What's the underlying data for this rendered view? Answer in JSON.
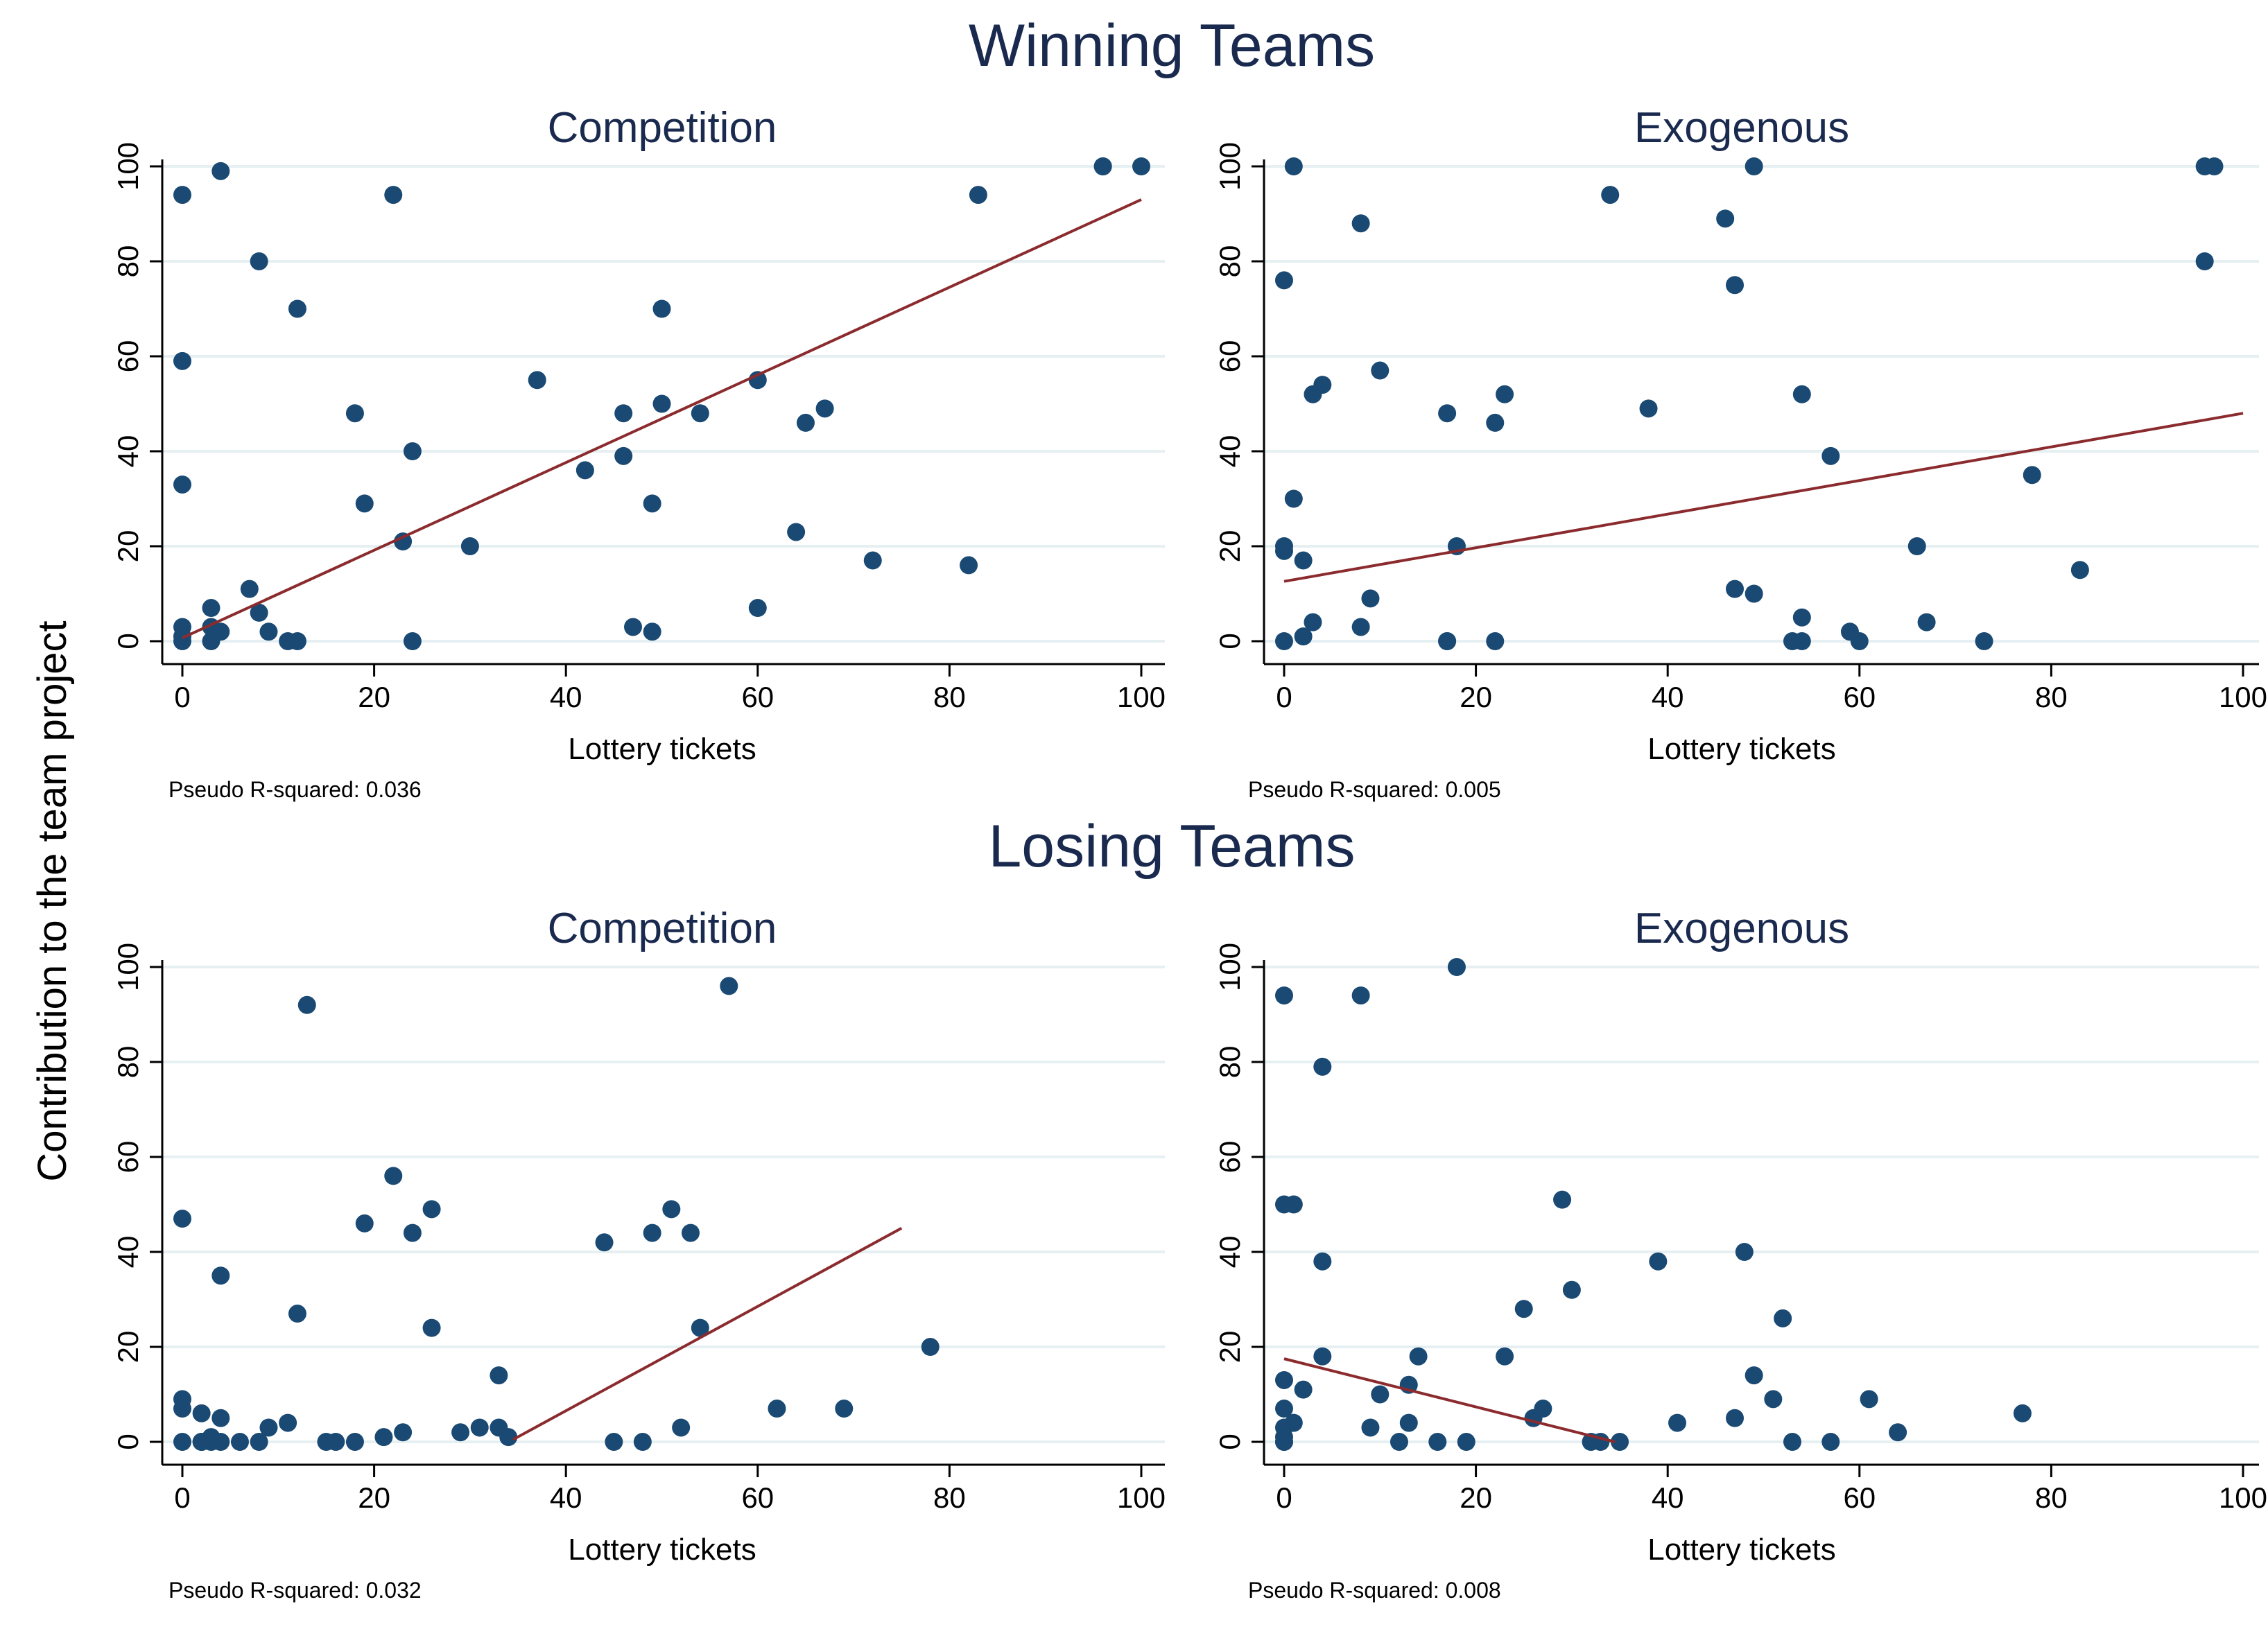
{
  "figure": {
    "ylabel": "Contribution to the team project"
  },
  "groups": [
    {
      "title": "Winning Teams"
    },
    {
      "title": "Losing Teams"
    }
  ],
  "colors": {
    "points": "#1a4a73",
    "fit_line": "#8b2b2e",
    "grid": "#e6eff1",
    "title": "#1a2a4f"
  },
  "chart_data": [
    {
      "type": "scatter",
      "group": "Winning Teams",
      "title": "Competition",
      "xlabel": "Lottery tickets",
      "xlim": [
        0,
        100
      ],
      "ylim": [
        0,
        100
      ],
      "xticks": [
        "0",
        "20",
        "40",
        "60",
        "80",
        "100"
      ],
      "yticks": [
        "0",
        "20",
        "40",
        "60",
        "80",
        "100"
      ],
      "grid": true,
      "note": "Pseudo R-squared: 0.036",
      "points": [
        [
          0,
          94
        ],
        [
          0,
          59
        ],
        [
          0,
          33
        ],
        [
          0,
          3
        ],
        [
          0,
          1
        ],
        [
          0,
          0
        ],
        [
          3,
          7
        ],
        [
          3,
          3
        ],
        [
          3,
          0
        ],
        [
          4,
          2
        ],
        [
          4,
          99
        ],
        [
          7,
          11
        ],
        [
          8,
          6
        ],
        [
          9,
          2
        ],
        [
          8,
          80
        ],
        [
          11,
          0
        ],
        [
          12,
          0
        ],
        [
          12,
          70
        ],
        [
          18,
          48
        ],
        [
          19,
          29
        ],
        [
          22,
          94
        ],
        [
          23,
          21
        ],
        [
          24,
          40
        ],
        [
          24,
          0
        ],
        [
          30,
          20
        ],
        [
          37,
          55
        ],
        [
          42,
          36
        ],
        [
          46,
          39
        ],
        [
          46,
          48
        ],
        [
          47,
          3
        ],
        [
          49,
          2
        ],
        [
          49,
          29
        ],
        [
          50,
          50
        ],
        [
          50,
          70
        ],
        [
          54,
          48
        ],
        [
          60,
          7
        ],
        [
          60,
          55
        ],
        [
          64,
          23
        ],
        [
          65,
          46
        ],
        [
          67,
          49
        ],
        [
          72,
          17
        ],
        [
          82,
          16
        ],
        [
          83,
          94
        ],
        [
          96,
          100
        ],
        [
          96,
          100
        ],
        [
          100,
          100
        ]
      ],
      "fit": [
        [
          0,
          0.7
        ],
        [
          100,
          93
        ]
      ]
    },
    {
      "type": "scatter",
      "group": "Winning Teams",
      "title": "Exogenous",
      "xlabel": "Lottery tickets",
      "xlim": [
        0,
        100
      ],
      "ylim": [
        0,
        100
      ],
      "xticks": [
        "0",
        "20",
        "40",
        "60",
        "80",
        "100"
      ],
      "yticks": [
        "0",
        "20",
        "40",
        "60",
        "80",
        "100"
      ],
      "grid": true,
      "note": "Pseudo R-squared: 0.005",
      "points": [
        [
          0,
          76
        ],
        [
          0,
          20
        ],
        [
          0,
          19
        ],
        [
          0,
          0
        ],
        [
          1,
          30
        ],
        [
          1,
          100
        ],
        [
          2,
          17
        ],
        [
          2,
          1
        ],
        [
          3,
          52
        ],
        [
          3,
          4
        ],
        [
          4,
          54
        ],
        [
          8,
          88
        ],
        [
          8,
          3
        ],
        [
          9,
          9
        ],
        [
          10,
          57
        ],
        [
          17,
          48
        ],
        [
          17,
          0
        ],
        [
          17,
          0
        ],
        [
          18,
          20
        ],
        [
          22,
          46
        ],
        [
          22,
          0
        ],
        [
          23,
          52
        ],
        [
          34,
          94
        ],
        [
          38,
          49
        ],
        [
          46,
          89
        ],
        [
          47,
          75
        ],
        [
          47,
          11
        ],
        [
          49,
          100
        ],
        [
          49,
          10
        ],
        [
          53,
          0
        ],
        [
          54,
          52
        ],
        [
          54,
          5
        ],
        [
          54,
          0
        ],
        [
          57,
          39
        ],
        [
          59,
          2
        ],
        [
          60,
          0
        ],
        [
          66,
          20
        ],
        [
          67,
          4
        ],
        [
          73,
          0
        ],
        [
          78,
          35
        ],
        [
          83,
          15
        ],
        [
          96,
          100
        ],
        [
          96,
          80
        ],
        [
          97,
          100
        ]
      ],
      "fit": [
        [
          0,
          12.6
        ],
        [
          100,
          48
        ]
      ]
    },
    {
      "type": "scatter",
      "group": "Losing Teams",
      "title": "Competition",
      "xlabel": "Lottery tickets",
      "xlim": [
        0,
        100
      ],
      "ylim": [
        0,
        100
      ],
      "xticks": [
        "0",
        "20",
        "40",
        "60",
        "80",
        "100"
      ],
      "yticks": [
        "0",
        "20",
        "40",
        "60",
        "80",
        "100"
      ],
      "grid": true,
      "note": "Pseudo R-squared: 0.032",
      "points": [
        [
          0,
          47
        ],
        [
          0,
          9
        ],
        [
          0,
          7
        ],
        [
          0,
          0
        ],
        [
          2,
          6
        ],
        [
          2,
          0
        ],
        [
          2,
          0
        ],
        [
          3,
          1
        ],
        [
          3,
          0
        ],
        [
          4,
          5
        ],
        [
          4,
          35
        ],
        [
          4,
          0
        ],
        [
          6,
          0
        ],
        [
          8,
          0
        ],
        [
          9,
          3
        ],
        [
          11,
          4
        ],
        [
          12,
          27
        ],
        [
          13,
          92
        ],
        [
          15,
          0
        ],
        [
          16,
          0
        ],
        [
          18,
          0
        ],
        [
          19,
          46
        ],
        [
          21,
          1
        ],
        [
          22,
          56
        ],
        [
          23,
          2
        ],
        [
          24,
          44
        ],
        [
          26,
          49
        ],
        [
          26,
          24
        ],
        [
          29,
          2
        ],
        [
          31,
          3
        ],
        [
          33,
          14
        ],
        [
          33,
          3
        ],
        [
          34,
          1
        ],
        [
          44,
          42
        ],
        [
          45,
          0
        ],
        [
          48,
          0
        ],
        [
          49,
          44
        ],
        [
          51,
          49
        ],
        [
          52,
          3
        ],
        [
          53,
          44
        ],
        [
          54,
          24
        ],
        [
          57,
          96
        ],
        [
          62,
          7
        ],
        [
          69,
          7
        ],
        [
          78,
          20
        ]
      ],
      "fit": [
        [
          34.5,
          0.5
        ],
        [
          75,
          45
        ]
      ]
    },
    {
      "type": "scatter",
      "group": "Losing Teams",
      "title": "Exogenous",
      "xlabel": "Lottery tickets",
      "xlim": [
        0,
        100
      ],
      "ylim": [
        0,
        100
      ],
      "xticks": [
        "0",
        "20",
        "40",
        "60",
        "80",
        "100"
      ],
      "yticks": [
        "0",
        "20",
        "40",
        "60",
        "80",
        "100"
      ],
      "grid": true,
      "note": "Pseudo R-squared: 0.008",
      "points": [
        [
          0,
          94
        ],
        [
          0,
          50
        ],
        [
          0,
          13
        ],
        [
          0,
          7
        ],
        [
          0,
          3
        ],
        [
          0,
          1
        ],
        [
          0,
          0
        ],
        [
          0,
          0
        ],
        [
          1,
          50
        ],
        [
          1,
          4
        ],
        [
          2,
          11
        ],
        [
          4,
          79
        ],
        [
          4,
          38
        ],
        [
          4,
          18
        ],
        [
          8,
          94
        ],
        [
          9,
          3
        ],
        [
          10,
          10
        ],
        [
          12,
          0
        ],
        [
          13,
          4
        ],
        [
          13,
          12
        ],
        [
          14,
          18
        ],
        [
          16,
          0
        ],
        [
          18,
          100
        ],
        [
          19,
          0
        ],
        [
          23,
          18
        ],
        [
          25,
          28
        ],
        [
          26,
          5
        ],
        [
          27,
          7
        ],
        [
          29,
          51
        ],
        [
          30,
          32
        ],
        [
          32,
          0
        ],
        [
          33,
          0
        ],
        [
          35,
          0
        ],
        [
          39,
          38
        ],
        [
          41,
          4
        ],
        [
          47,
          5
        ],
        [
          48,
          40
        ],
        [
          49,
          14
        ],
        [
          51,
          9
        ],
        [
          52,
          26
        ],
        [
          53,
          0
        ],
        [
          57,
          0
        ],
        [
          61,
          9
        ],
        [
          64,
          2
        ],
        [
          77,
          6
        ]
      ],
      "fit": [
        [
          0,
          17.5
        ],
        [
          34.5,
          0
        ]
      ]
    }
  ]
}
